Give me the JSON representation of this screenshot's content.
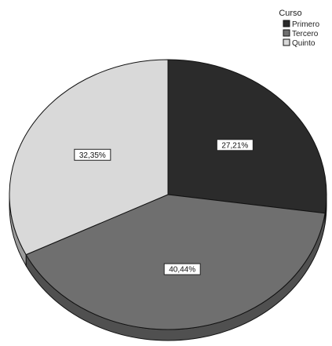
{
  "chart_data": {
    "type": "pie",
    "style": "3d",
    "title": "",
    "legend": {
      "title": "Curso",
      "position": "top-right"
    },
    "series": [
      {
        "name": "Primero",
        "value": 27.21,
        "label": "27,21%",
        "color": "#2b2b2b"
      },
      {
        "name": "Tercero",
        "value": 40.44,
        "label": "40,44%",
        "color": "#6f6f6f"
      },
      {
        "name": "Quinto",
        "value": 32.35,
        "label": "32,35%",
        "color": "#d9d9d9"
      }
    ]
  }
}
